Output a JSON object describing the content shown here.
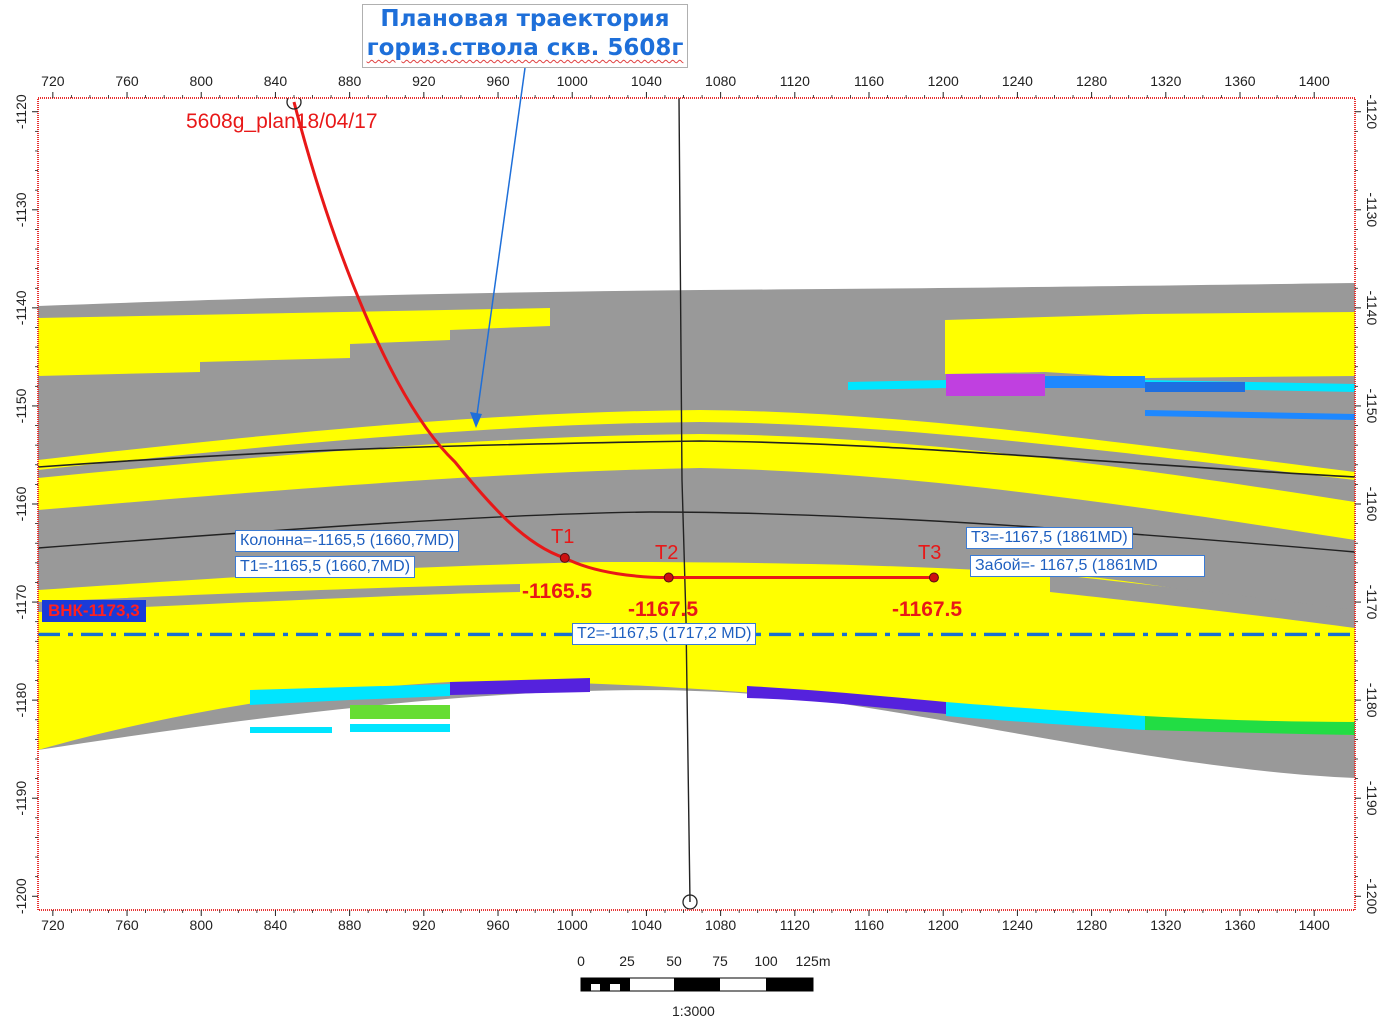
{
  "title": {
    "line1": "Плановая траектория",
    "line2": "гориз.ствола скв. 5608г"
  },
  "well_label": "5608g_plan18/04/17",
  "x_axis": {
    "ticks": [
      720,
      760,
      800,
      840,
      880,
      920,
      960,
      1000,
      1040,
      1080,
      1120,
      1160,
      1200,
      1240,
      1280,
      1320,
      1360,
      1400
    ],
    "range": [
      712,
      1422
    ]
  },
  "y_axis": {
    "ticks": [
      -1120,
      -1130,
      -1140,
      -1150,
      -1160,
      -1170,
      -1180,
      -1190,
      -1200
    ],
    "range": [
      -1118.6,
      -1201.4
    ]
  },
  "targets": [
    {
      "name": "T1",
      "x": 996,
      "depth": -1165.5,
      "value_label": "-1165.5"
    },
    {
      "name": "T2",
      "x": 1052,
      "depth": -1167.5,
      "value_label": "-1167.5"
    },
    {
      "name": "T3",
      "x": 1195,
      "depth": -1167.5,
      "value_label": "-1167.5"
    }
  ],
  "annotations": {
    "kolonna": "Колонна=-1165,5 (1660,7MD)",
    "t1": "T1=-1165,5  (1660,7MD)",
    "t2": "T2=-1167,5 (1717,2 MD)",
    "t3": "T3=-1167,5 (1861MD)",
    "zaboy": "Забой=- 1167,5 (1861MD"
  },
  "wnk": {
    "label": "ВНК-1173,3",
    "depth": -1173.3
  },
  "scale_bar": {
    "ticks": [
      "0",
      "25",
      "50",
      "75",
      "100",
      "125m"
    ],
    "ratio": "1:3000"
  },
  "colors": {
    "trajectory": "#e81818",
    "pay_zone": "#ffff00",
    "non_reservoir": "#999999",
    "wnk_line": "#1a6fd0",
    "axis_frame": "#e83030",
    "title_text": "#1e6fd9"
  }
}
